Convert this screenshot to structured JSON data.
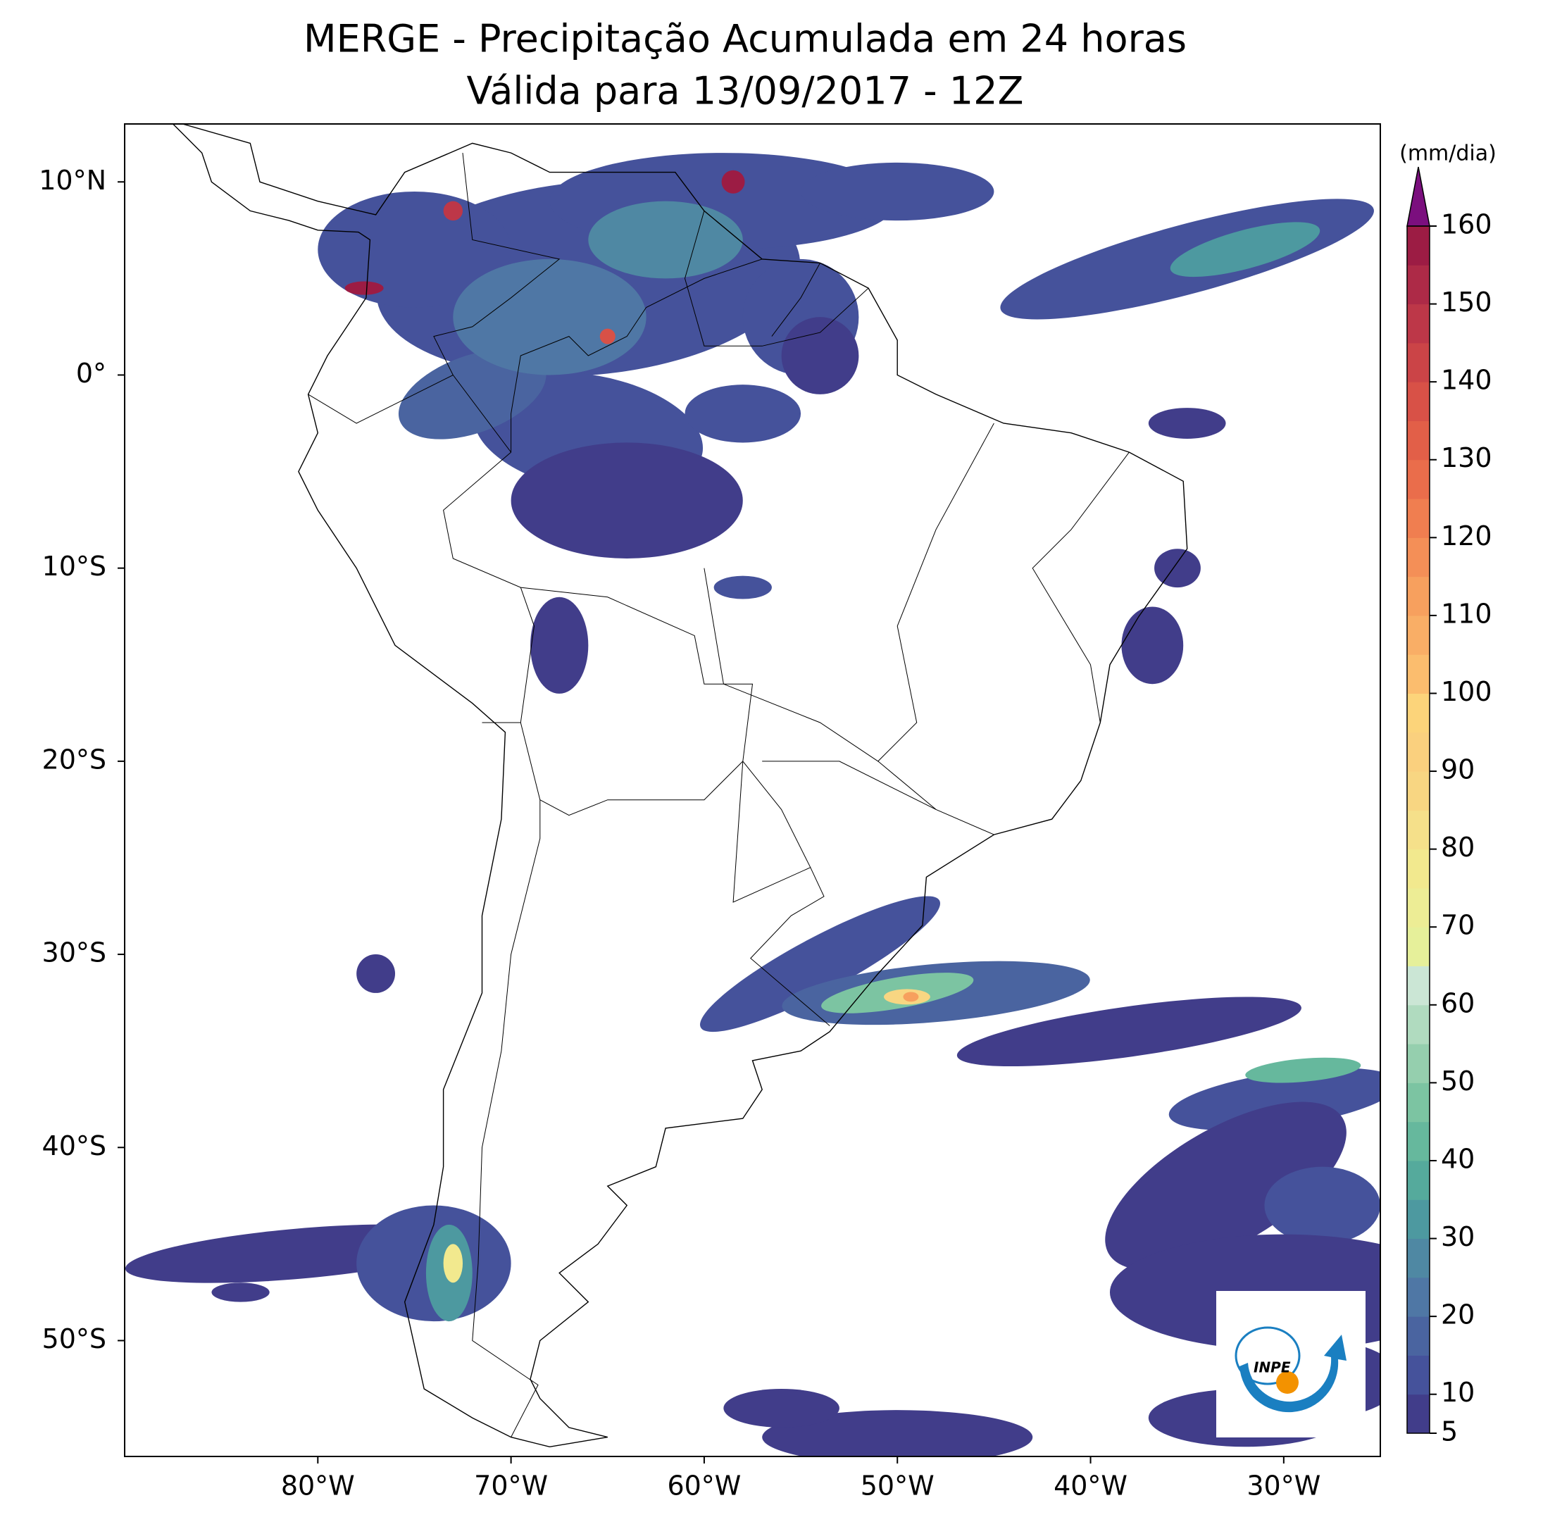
{
  "title": "MERGE - Precipitação Acumulada em 24 horas",
  "subtitle": "Válida para 13/09/2017 - 12Z",
  "map": {
    "lonlim": [
      -90,
      -25
    ],
    "latlim": [
      -56,
      13
    ],
    "lon_ticks": [
      {
        "value": -80,
        "label": "80°W"
      },
      {
        "value": -70,
        "label": "70°W"
      },
      {
        "value": -60,
        "label": "60°W"
      },
      {
        "value": -50,
        "label": "50°W"
      },
      {
        "value": -40,
        "label": "40°W"
      },
      {
        "value": -30,
        "label": "30°W"
      }
    ],
    "lat_ticks": [
      {
        "value": 10,
        "label": "10°N"
      },
      {
        "value": 0,
        "label": "0°"
      },
      {
        "value": -10,
        "label": "10°S"
      },
      {
        "value": -20,
        "label": "20°S"
      },
      {
        "value": -30,
        "label": "30°S"
      },
      {
        "value": -40,
        "label": "40°S"
      },
      {
        "value": -50,
        "label": "50°S"
      }
    ]
  },
  "colorbar": {
    "label": "(mm/dia)",
    "lim": [
      5,
      160
    ],
    "ticks": [
      5,
      10,
      20,
      30,
      40,
      50,
      60,
      70,
      80,
      90,
      100,
      110,
      120,
      130,
      140,
      150,
      160
    ],
    "levels": [
      5,
      10,
      15,
      20,
      25,
      30,
      35,
      40,
      45,
      50,
      55,
      60,
      65,
      70,
      75,
      80,
      85,
      90,
      95,
      100,
      105,
      110,
      115,
      120,
      125,
      130,
      135,
      140,
      145,
      150,
      155,
      160
    ],
    "colors": [
      "#413d8a",
      "#45529b",
      "#4a64a0",
      "#4f77a5",
      "#4f88a3",
      "#4d99a0",
      "#55aa9c",
      "#66b89d",
      "#7cc4a2",
      "#95cfae",
      "#b0dbbf",
      "#cbe6d5",
      "#e6f09a",
      "#eded95",
      "#f2e98e",
      "#f5e08a",
      "#f8d682",
      "#fad07e",
      "#fcd47a",
      "#fbbd6e",
      "#f9ae66",
      "#f7a05e",
      "#f48f57",
      "#f07e50",
      "#ea6d4b",
      "#e25f48",
      "#d85147",
      "#cb4447",
      "#bd3748",
      "#ad2a47",
      "#9c1c44"
    ],
    "extend_color": "#7b0f7e"
  },
  "logo_text": "INPE"
}
